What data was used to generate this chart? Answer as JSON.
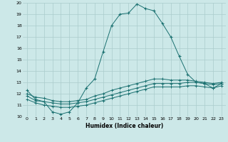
{
  "xlabel": "Humidex (Indice chaleur)",
  "bg_color": "#cce8e8",
  "grid_color": "#aacccc",
  "line_color": "#1a7070",
  "xlim": [
    -0.5,
    23.5
  ],
  "ylim": [
    10,
    20
  ],
  "xticks": [
    0,
    1,
    2,
    3,
    4,
    5,
    6,
    7,
    8,
    9,
    10,
    11,
    12,
    13,
    14,
    15,
    16,
    17,
    18,
    19,
    20,
    21,
    22,
    23
  ],
  "yticks": [
    10,
    11,
    12,
    13,
    14,
    15,
    16,
    17,
    18,
    19,
    20
  ],
  "series1_x": [
    0,
    1,
    2,
    3,
    4,
    5,
    6,
    7,
    8,
    9,
    10,
    11,
    12,
    13,
    14,
    15,
    16,
    17,
    18,
    19,
    20,
    21,
    22,
    23
  ],
  "series1_y": [
    12.3,
    11.5,
    11.3,
    10.4,
    10.2,
    10.4,
    11.2,
    12.5,
    13.3,
    15.7,
    18.0,
    19.0,
    19.1,
    19.9,
    19.5,
    19.3,
    18.2,
    17.0,
    15.3,
    13.7,
    13.0,
    12.9,
    12.5,
    12.9
  ],
  "series2_x": [
    0,
    1,
    2,
    3,
    4,
    5,
    6,
    7,
    8,
    9,
    10,
    11,
    12,
    13,
    14,
    15,
    16,
    17,
    18,
    19,
    20,
    21,
    22,
    23
  ],
  "series2_y": [
    12.0,
    11.7,
    11.6,
    11.4,
    11.3,
    11.3,
    11.4,
    11.5,
    11.8,
    12.0,
    12.3,
    12.5,
    12.7,
    12.9,
    13.1,
    13.3,
    13.3,
    13.2,
    13.2,
    13.2,
    13.1,
    13.0,
    12.9,
    13.0
  ],
  "series3_x": [
    0,
    1,
    2,
    3,
    4,
    5,
    6,
    7,
    8,
    9,
    10,
    11,
    12,
    13,
    14,
    15,
    16,
    17,
    18,
    19,
    20,
    21,
    22,
    23
  ],
  "series3_y": [
    11.8,
    11.4,
    11.3,
    11.2,
    11.1,
    11.1,
    11.2,
    11.3,
    11.5,
    11.7,
    11.9,
    12.1,
    12.3,
    12.5,
    12.7,
    12.9,
    12.9,
    12.9,
    12.9,
    13.0,
    13.0,
    12.9,
    12.8,
    12.9
  ],
  "series4_x": [
    0,
    1,
    2,
    3,
    4,
    5,
    6,
    7,
    8,
    9,
    10,
    11,
    12,
    13,
    14,
    15,
    16,
    17,
    18,
    19,
    20,
    21,
    22,
    23
  ],
  "series4_y": [
    11.5,
    11.2,
    11.0,
    10.9,
    10.8,
    10.8,
    10.9,
    11.0,
    11.2,
    11.4,
    11.6,
    11.8,
    12.0,
    12.2,
    12.4,
    12.6,
    12.6,
    12.6,
    12.6,
    12.7,
    12.7,
    12.6,
    12.5,
    12.7
  ]
}
